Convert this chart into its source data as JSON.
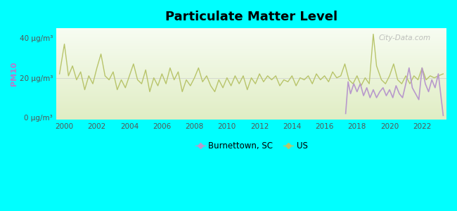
{
  "title": "Particulate Matter Level",
  "ylabel": "PM10",
  "background_outer": "#00FFFF",
  "yticks": [
    0,
    20,
    40
  ],
  "ytick_labels": [
    "0 μg/m³",
    "20 μg/m³",
    "40 μg/m³"
  ],
  "xlim": [
    1999.5,
    2023.5
  ],
  "ylim": [
    -1,
    45
  ],
  "us_color": "#b8c46a",
  "burnettown_color": "#b899cc",
  "legend_burnettown": "Burnettown, SC",
  "legend_us": "US",
  "watermark": "City-Data.com",
  "us_data": [
    [
      1999.7,
      22
    ],
    [
      2000.0,
      37
    ],
    [
      2000.25,
      21
    ],
    [
      2000.5,
      26
    ],
    [
      2000.75,
      19
    ],
    [
      2001.0,
      23
    ],
    [
      2001.25,
      14
    ],
    [
      2001.5,
      21
    ],
    [
      2001.75,
      17
    ],
    [
      2002.0,
      25
    ],
    [
      2002.25,
      32
    ],
    [
      2002.5,
      21
    ],
    [
      2002.75,
      19
    ],
    [
      2003.0,
      23
    ],
    [
      2003.25,
      14
    ],
    [
      2003.5,
      19
    ],
    [
      2003.75,
      15
    ],
    [
      2004.0,
      21
    ],
    [
      2004.25,
      27
    ],
    [
      2004.5,
      19
    ],
    [
      2004.75,
      17
    ],
    [
      2005.0,
      24
    ],
    [
      2005.25,
      13
    ],
    [
      2005.5,
      20
    ],
    [
      2005.75,
      16
    ],
    [
      2006.0,
      22
    ],
    [
      2006.25,
      17
    ],
    [
      2006.5,
      25
    ],
    [
      2006.75,
      19
    ],
    [
      2007.0,
      23
    ],
    [
      2007.25,
      13
    ],
    [
      2007.5,
      19
    ],
    [
      2007.75,
      16
    ],
    [
      2008.0,
      20
    ],
    [
      2008.25,
      25
    ],
    [
      2008.5,
      18
    ],
    [
      2008.75,
      21
    ],
    [
      2009.0,
      16
    ],
    [
      2009.25,
      13
    ],
    [
      2009.5,
      19
    ],
    [
      2009.75,
      15
    ],
    [
      2010.0,
      20
    ],
    [
      2010.25,
      16
    ],
    [
      2010.5,
      21
    ],
    [
      2010.75,
      17
    ],
    [
      2011.0,
      21
    ],
    [
      2011.25,
      14
    ],
    [
      2011.5,
      20
    ],
    [
      2011.75,
      17
    ],
    [
      2012.0,
      22
    ],
    [
      2012.25,
      18
    ],
    [
      2012.5,
      21
    ],
    [
      2012.75,
      19
    ],
    [
      2013.0,
      21
    ],
    [
      2013.25,
      16
    ],
    [
      2013.5,
      19
    ],
    [
      2013.75,
      18
    ],
    [
      2014.0,
      21
    ],
    [
      2014.25,
      16
    ],
    [
      2014.5,
      20
    ],
    [
      2014.75,
      19
    ],
    [
      2015.0,
      21
    ],
    [
      2015.25,
      17
    ],
    [
      2015.5,
      22
    ],
    [
      2015.75,
      19
    ],
    [
      2016.0,
      21
    ],
    [
      2016.25,
      18
    ],
    [
      2016.5,
      23
    ],
    [
      2016.75,
      20
    ],
    [
      2017.0,
      21
    ],
    [
      2017.25,
      27
    ],
    [
      2017.5,
      19
    ],
    [
      2017.75,
      17
    ],
    [
      2018.0,
      21
    ],
    [
      2018.25,
      16
    ],
    [
      2018.5,
      20
    ],
    [
      2018.75,
      17
    ],
    [
      2019.0,
      42
    ],
    [
      2019.2,
      26
    ],
    [
      2019.5,
      19
    ],
    [
      2019.75,
      17
    ],
    [
      2020.0,
      21
    ],
    [
      2020.25,
      27
    ],
    [
      2020.5,
      19
    ],
    [
      2020.75,
      17
    ],
    [
      2021.0,
      21
    ],
    [
      2021.25,
      17
    ],
    [
      2021.5,
      21
    ],
    [
      2021.75,
      19
    ],
    [
      2022.0,
      25
    ],
    [
      2022.25,
      19
    ],
    [
      2022.5,
      21
    ],
    [
      2022.75,
      20
    ],
    [
      2023.0,
      21
    ],
    [
      2023.3,
      22
    ]
  ],
  "burnettown_data": [
    [
      2017.3,
      2
    ],
    [
      2017.45,
      18
    ],
    [
      2017.6,
      12
    ],
    [
      2017.8,
      17
    ],
    [
      2018.0,
      13
    ],
    [
      2018.2,
      17
    ],
    [
      2018.4,
      11
    ],
    [
      2018.6,
      15
    ],
    [
      2018.8,
      10
    ],
    [
      2019.0,
      14
    ],
    [
      2019.2,
      10
    ],
    [
      2019.4,
      13
    ],
    [
      2019.6,
      15
    ],
    [
      2019.8,
      11
    ],
    [
      2020.0,
      14
    ],
    [
      2020.2,
      10
    ],
    [
      2020.4,
      16
    ],
    [
      2020.6,
      12
    ],
    [
      2020.8,
      10
    ],
    [
      2021.0,
      17
    ],
    [
      2021.2,
      25
    ],
    [
      2021.4,
      15
    ],
    [
      2021.6,
      12
    ],
    [
      2021.8,
      9
    ],
    [
      2022.0,
      25
    ],
    [
      2022.2,
      17
    ],
    [
      2022.4,
      13
    ],
    [
      2022.6,
      19
    ],
    [
      2022.8,
      15
    ],
    [
      2023.0,
      22
    ],
    [
      2023.3,
      1
    ]
  ]
}
